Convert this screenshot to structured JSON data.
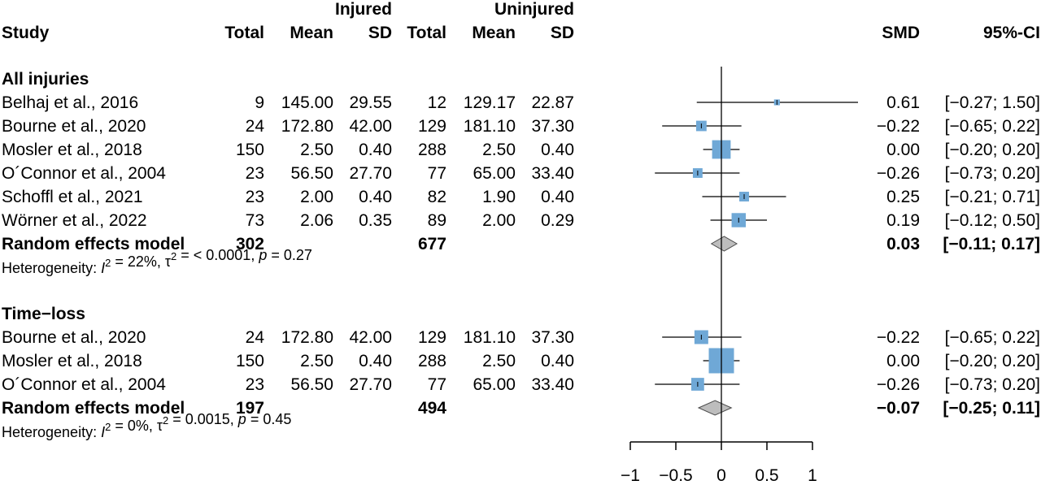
{
  "chart_data": {
    "type": "forest",
    "headers": {
      "group_injured": "Injured",
      "group_uninjured": "Uninjured",
      "study": "Study",
      "total": "Total",
      "mean": "Mean",
      "sd": "SD",
      "smd": "SMD",
      "ci": "95%-CI"
    },
    "x_axis": {
      "ticks": [
        -1,
        -0.5,
        0,
        0.5,
        1
      ],
      "tick_labels": [
        "−1",
        "−0.5",
        "0",
        "0.5",
        "1"
      ],
      "xlim": [
        -1,
        1
      ],
      "reference_line": 0
    },
    "colors": {
      "box": "#6fa8d6",
      "diamond": "#bdbdbd",
      "line": "#000000"
    },
    "subgroups": [
      {
        "label": "All injuries",
        "studies": [
          {
            "study": "Belhaj et al., 2016",
            "n1": "9",
            "mean1": "145.00",
            "sd1": "29.55",
            "n2": "12",
            "mean2": "129.17",
            "sd2": "22.87",
            "smd": 0.61,
            "lo": -0.27,
            "hi": 1.5,
            "smd_text": "0.61",
            "ci_text": "[−0.27; 1.50]",
            "weight": 3.2
          },
          {
            "study": "Bourne et al., 2020",
            "n1": "24",
            "mean1": "172.80",
            "sd1": "42.00",
            "n2": "129",
            "mean2": "181.10",
            "sd2": "37.30",
            "smd": -0.22,
            "lo": -0.65,
            "hi": 0.22,
            "smd_text": "−0.22",
            "ci_text": "[−0.65; 0.22]",
            "weight": 10.3
          },
          {
            "study": "Mosler et al., 2018",
            "n1": "150",
            "mean1": "2.50",
            "sd1": "0.40",
            "n2": "288",
            "mean2": "2.50",
            "sd2": "0.40",
            "smd": 0.0,
            "lo": -0.2,
            "hi": 0.2,
            "smd_text": "0.00",
            "ci_text": "[−0.20; 0.20]",
            "weight": 32.5
          },
          {
            "study": "O´Connor et al., 2004",
            "n1": "23",
            "mean1": "56.50",
            "sd1": "27.70",
            "n2": "77",
            "mean2": "65.00",
            "sd2": "33.40",
            "smd": -0.26,
            "lo": -0.73,
            "hi": 0.2,
            "smd_text": "−0.26",
            "ci_text": "[−0.73; 0.20]",
            "weight": 8.8
          },
          {
            "study": "Schoffl et al., 2021",
            "n1": "23",
            "mean1": "2.00",
            "sd1": "0.40",
            "n2": "82",
            "mean2": "1.90",
            "sd2": "0.40",
            "smd": 0.25,
            "lo": -0.21,
            "hi": 0.71,
            "smd_text": "0.25",
            "ci_text": "[−0.21; 0.71]",
            "weight": 8.9
          },
          {
            "study": "Wörner et al., 2022",
            "n1": "73",
            "mean1": "2.06",
            "sd1": "0.35",
            "n2": "89",
            "mean2": "2.00",
            "sd2": "0.29",
            "smd": 0.19,
            "lo": -0.12,
            "hi": 0.5,
            "smd_text": "0.19",
            "ci_text": "[−0.12; 0.50]",
            "weight": 19.0
          }
        ],
        "pooled": {
          "label": "Random effects model",
          "n1": "302",
          "n2": "677",
          "smd": 0.03,
          "lo": -0.11,
          "hi": 0.17,
          "smd_text": "0.03",
          "ci_text": "[−0.11; 0.17]"
        },
        "heterogeneity": {
          "prefix": "Heterogeneity: ",
          "i2_symbol": "I",
          "sup": "2",
          "i2_value": " = 22%, ",
          "tau_symbol": "τ",
          "tau_value": " = < 0.0001, ",
          "p_symbol": "p",
          "p_value": " = 0.27"
        }
      },
      {
        "label": "Time−loss",
        "studies": [
          {
            "study": "Bourne et al., 2020",
            "n1": "24",
            "mean1": "172.80",
            "sd1": "42.00",
            "n2": "129",
            "mean2": "181.10",
            "sd2": "37.30",
            "smd": -0.22,
            "lo": -0.65,
            "hi": 0.22,
            "smd_text": "−0.22",
            "ci_text": "[−0.65; 0.22]",
            "weight": 18.0
          },
          {
            "study": "Mosler et al., 2018",
            "n1": "150",
            "mean1": "2.50",
            "sd1": "0.40",
            "n2": "288",
            "mean2": "2.50",
            "sd2": "0.40",
            "smd": 0.0,
            "lo": -0.2,
            "hi": 0.2,
            "smd_text": "0.00",
            "ci_text": "[−0.20; 0.20]",
            "weight": 60.0
          },
          {
            "study": "O´Connor et al., 2004",
            "n1": "23",
            "mean1": "56.50",
            "sd1": "27.70",
            "n2": "77",
            "mean2": "65.00",
            "sd2": "33.40",
            "smd": -0.26,
            "lo": -0.73,
            "hi": 0.2,
            "smd_text": "−0.26",
            "ci_text": "[−0.73; 0.20]",
            "weight": 15.5
          }
        ],
        "pooled": {
          "label": "Random effects model",
          "n1": "197",
          "n2": "494",
          "smd": -0.07,
          "lo": -0.25,
          "hi": 0.11,
          "smd_text": "−0.07",
          "ci_text": "[−0.25; 0.11]"
        },
        "heterogeneity": {
          "prefix": "Heterogeneity: ",
          "i2_symbol": "I",
          "sup": "2",
          "i2_value": " = 0%, ",
          "tau_symbol": "τ",
          "tau_value": " = 0.0015, ",
          "p_symbol": "p",
          "p_value": " = 0.45"
        }
      }
    ]
  }
}
